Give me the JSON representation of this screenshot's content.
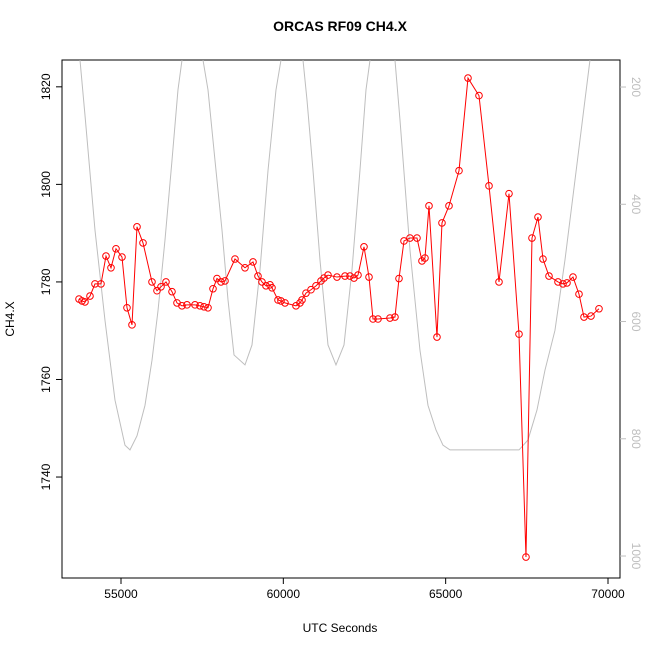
{
  "chart_data": {
    "type": "line",
    "title": "ORCAS RF09 CH4.X",
    "xlabel": "UTC Seconds",
    "ylabel": "CH4.X",
    "xlim": [
      53183,
      70370
    ],
    "xticks": [
      55000,
      60000,
      65000,
      70000
    ],
    "ylim": [
      1719.3,
      1825.5
    ],
    "yticks": [
      1740,
      1760,
      1780,
      1800,
      1820
    ],
    "y2lim": [
      1037.5,
      153.9
    ],
    "y2ticks": [
      200,
      400,
      600,
      800,
      1000
    ],
    "series": [
      {
        "color": "#bebebe",
        "axis": "y2",
        "x": [
          53737,
          53891,
          54199,
          54507,
          54815,
          55123,
          55277,
          55493,
          55739,
          55955,
          56141,
          56355,
          56571,
          56755,
          56879,
          null,
          57526,
          57680,
          57895,
          58111,
          58296,
          58481,
          58819,
          59035,
          59281,
          59529,
          59774,
          59928,
          null,
          60606,
          60729,
          60914,
          61129,
          61376,
          61622,
          61869,
          62115,
          62361,
          62546,
          62670,
          null,
          63439,
          63593,
          63901,
          64209,
          64456,
          64702,
          64918,
          65133,
          67259,
          67536,
          67813,
          68059,
          68367,
          68675,
          68983,
          69291,
          69445
        ],
        "values": [
          154,
          248,
          444,
          598,
          734,
          811,
          819,
          795,
          743,
          666,
          581,
          461,
          325,
          205,
          154,
          null,
          154,
          205,
          325,
          444,
          563,
          657,
          674,
          640,
          512,
          342,
          205,
          154,
          null,
          154,
          222,
          342,
          495,
          640,
          674,
          640,
          512,
          342,
          205,
          154,
          null,
          154,
          256,
          478,
          649,
          743,
          785,
          811,
          819,
          819,
          802,
          751,
          683,
          615,
          495,
          359,
          222,
          154
        ]
      },
      {
        "color": "#ff0000",
        "x": [
          53707,
          53799,
          53891,
          54045,
          54199,
          54384,
          54538,
          54692,
          54846,
          55031,
          55185,
          55339,
          55493,
          55678,
          55955,
          56109,
          56232,
          56386,
          56571,
          56725,
          56879,
          57033,
          57279,
          57433,
          57556,
          57680,
          57834,
          57957,
          58080,
          58203,
          58511,
          58819,
          59066,
          59220,
          59343,
          59466,
          59589,
          59651,
          59836,
          59928,
          60051,
          60390,
          60513,
          60575,
          60698,
          60852,
          61006,
          61160,
          61253,
          61376,
          61653,
          61899,
          62053,
          62177,
          62300,
          62485,
          62639,
          62762,
          62916,
          63285,
          63439,
          63563,
          63717,
          63901,
          64117,
          64271,
          64363,
          64487,
          64733,
          64887,
          65103,
          65411,
          65688,
          66027,
          66335,
          66643,
          66951,
          67259,
          67474,
          67659,
          67844,
          67998,
          68183,
          68460,
          68614,
          68737,
          68922,
          69107,
          69261,
          69477,
          69723
        ],
        "values": [
          1776.5,
          1776.1,
          1775.9,
          1777.1,
          1779.6,
          1779.6,
          1785.3,
          1782.9,
          1786.8,
          1785.1,
          1774.7,
          1771.2,
          1791.3,
          1788.0,
          1780.0,
          1778.2,
          1779.0,
          1780.0,
          1778.0,
          1775.7,
          1775.1,
          1775.3,
          1775.3,
          1775.1,
          1774.9,
          1774.7,
          1778.6,
          1780.7,
          1780.0,
          1780.2,
          1784.7,
          1782.9,
          1784.1,
          1781.2,
          1780.0,
          1779.2,
          1779.4,
          1778.8,
          1776.3,
          1776.1,
          1775.7,
          1775.1,
          1775.7,
          1776.3,
          1777.7,
          1778.4,
          1779.2,
          1780.2,
          1780.8,
          1781.4,
          1781.0,
          1781.2,
          1781.2,
          1780.8,
          1781.4,
          1787.2,
          1781.0,
          1772.4,
          1772.4,
          1772.6,
          1772.8,
          1780.7,
          1788.4,
          1789.0,
          1789.0,
          1784.3,
          1784.9,
          1795.6,
          1768.7,
          1792.1,
          1795.6,
          1802.8,
          1821.8,
          1818.2,
          1799.7,
          1780.0,
          1798.1,
          1769.3,
          1723.6,
          1789.0,
          1793.3,
          1784.7,
          1781.2,
          1780.0,
          1779.6,
          1779.8,
          1781.0,
          1777.5,
          1772.8,
          1773.0,
          1774.5
        ]
      }
    ]
  }
}
